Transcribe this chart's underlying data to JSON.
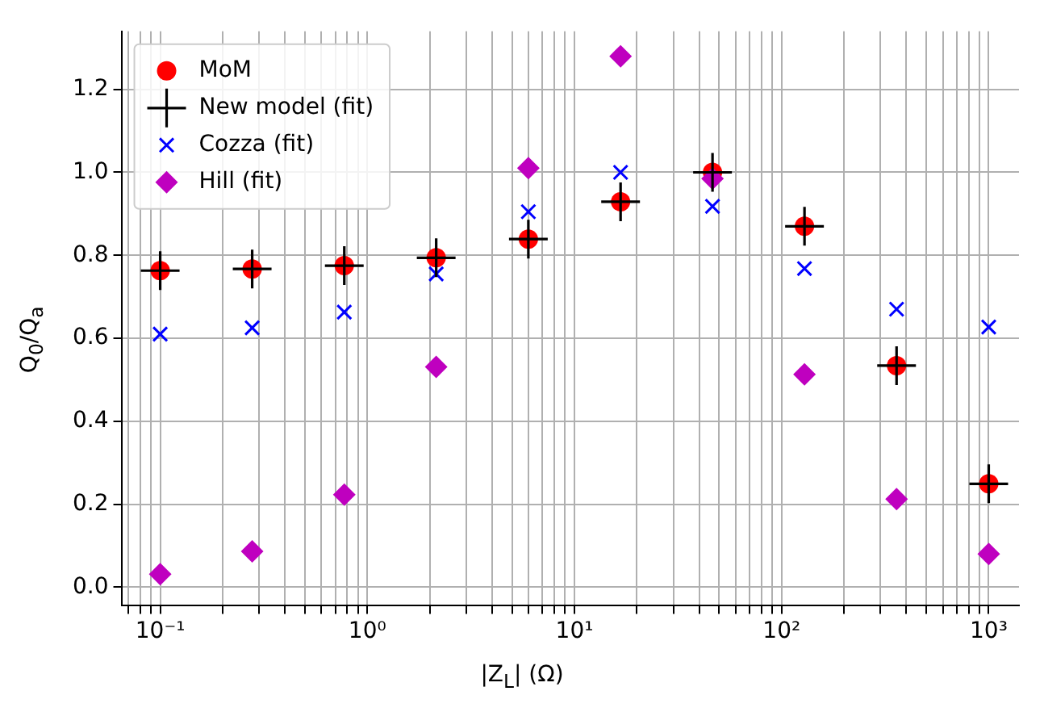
{
  "chart_data": {
    "type": "scatter",
    "xlabel": "|Z$_{L}$| (Ω)",
    "ylabel": "Q$_{0}$/Q$_{a}$",
    "x": [
      0.1,
      0.278,
      0.774,
      2.15,
      5.99,
      16.7,
      46.4,
      129,
      359,
      1000
    ],
    "series": [
      {
        "name": "MoM",
        "color": "#ff0000",
        "marker": "circle",
        "values": [
          0.763,
          0.767,
          0.775,
          0.794,
          0.839,
          0.929,
          1.0,
          0.87,
          0.534,
          0.249
        ]
      },
      {
        "name": "New model (fit)",
        "color": "#000000",
        "marker": "cross",
        "values": [
          0.763,
          0.767,
          0.775,
          0.794,
          0.839,
          0.929,
          1.0,
          0.87,
          0.534,
          0.249
        ]
      },
      {
        "name": "Cozza (fit)",
        "color": "#0000ff",
        "marker": "x",
        "values": [
          0.61,
          0.625,
          0.663,
          0.755,
          0.905,
          1.0,
          0.918,
          0.768,
          0.67,
          0.627
        ]
      },
      {
        "name": "Hill (fit)",
        "color": "#bf00bf",
        "marker": "diamond",
        "values": [
          0.031,
          0.086,
          0.223,
          0.531,
          1.01,
          1.28,
          0.985,
          0.513,
          0.212,
          0.08
        ]
      }
    ],
    "log": "x",
    "xlim": [
      0.065,
      1400
    ],
    "xticks": [
      {
        "value": 0.07,
        "label": null
      },
      {
        "value": 0.08,
        "label": null
      },
      {
        "value": 0.09,
        "label": null
      },
      {
        "value": 0.1,
        "label": "10⁻¹"
      },
      {
        "value": 0.2,
        "label": null
      },
      {
        "value": 0.3,
        "label": null
      },
      {
        "value": 0.4,
        "label": null
      },
      {
        "value": 0.5,
        "label": null
      },
      {
        "value": 0.6,
        "label": null
      },
      {
        "value": 0.7,
        "label": null
      },
      {
        "value": 0.8,
        "label": null
      },
      {
        "value": 0.9,
        "label": null
      },
      {
        "value": 1,
        "label": "10⁰"
      },
      {
        "value": 2,
        "label": null
      },
      {
        "value": 3,
        "label": null
      },
      {
        "value": 4,
        "label": null
      },
      {
        "value": 5,
        "label": null
      },
      {
        "value": 6,
        "label": null
      },
      {
        "value": 7,
        "label": null
      },
      {
        "value": 8,
        "label": null
      },
      {
        "value": 9,
        "label": null
      },
      {
        "value": 10,
        "label": "10¹"
      },
      {
        "value": 20,
        "label": null
      },
      {
        "value": 30,
        "label": null
      },
      {
        "value": 40,
        "label": null
      },
      {
        "value": 50,
        "label": null
      },
      {
        "value": 60,
        "label": null
      },
      {
        "value": 70,
        "label": null
      },
      {
        "value": 80,
        "label": null
      },
      {
        "value": 90,
        "label": null
      },
      {
        "value": 100,
        "label": "10²"
      },
      {
        "value": 200,
        "label": null
      },
      {
        "value": 300,
        "label": null
      },
      {
        "value": 400,
        "label": null
      },
      {
        "value": 500,
        "label": null
      },
      {
        "value": 600,
        "label": null
      },
      {
        "value": 700,
        "label": null
      },
      {
        "value": 800,
        "label": null
      },
      {
        "value": 900,
        "label": null
      },
      {
        "value": 1000,
        "label": "10³"
      }
    ],
    "ylim": [
      -0.045,
      1.34
    ],
    "yticks": [
      {
        "value": 0,
        "label": "0.0"
      },
      0.2,
      0.4,
      0.6,
      0.8,
      {
        "value": 1,
        "label": "1.0"
      },
      {
        "value": 1.2,
        "label": "1.2"
      }
    ],
    "grid": true,
    "legend": "top left"
  }
}
